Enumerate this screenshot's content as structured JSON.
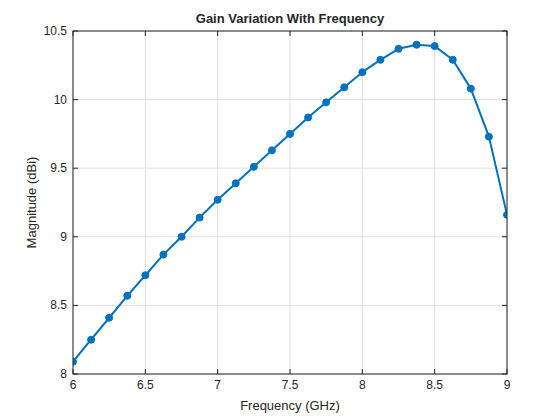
{
  "chart_data": {
    "type": "line",
    "title": "Gain Variation With Frequency",
    "x_label": "Frequency (GHz)",
    "y_label": "Magnitude (dBi)",
    "x": [
      6,
      6.125,
      6.25,
      6.375,
      6.5,
      6.625,
      6.75,
      6.875,
      7,
      7.125,
      7.25,
      7.375,
      7.5,
      7.625,
      7.75,
      7.875,
      8,
      8.125,
      8.25,
      8.375,
      8.5,
      8.625,
      8.75,
      8.875,
      9
    ],
    "values": [
      8.09,
      8.25,
      8.41,
      8.57,
      8.72,
      8.87,
      9.0,
      9.14,
      9.27,
      9.39,
      9.51,
      9.63,
      9.75,
      9.87,
      9.98,
      10.09,
      10.2,
      10.29,
      10.37,
      10.4,
      10.39,
      10.29,
      10.08,
      9.73,
      9.16
    ],
    "color": "#0072bd",
    "marker": "circle",
    "line_style": "solid",
    "xlim": [
      6,
      9
    ],
    "xticks": [
      6,
      6.5,
      7,
      7.5,
      8,
      8.5,
      9
    ],
    "ylim": [
      8,
      10.5
    ],
    "yticks": [
      8,
      8.5,
      9,
      9.5,
      10,
      10.5
    ],
    "grid": true
  }
}
